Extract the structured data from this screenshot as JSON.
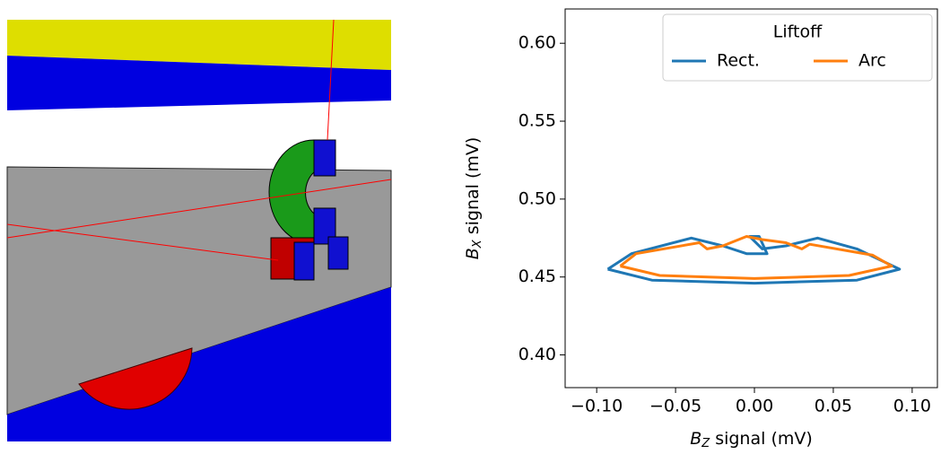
{
  "chart_data": {
    "type": "line",
    "xlabel": [
      "B",
      "Z",
      " signal (mV)"
    ],
    "ylabel": [
      "B",
      "X",
      " signal (mV)"
    ],
    "legend_title": "Liftoff",
    "legend": "upper right",
    "xlim": [
      -0.12,
      0.116
    ],
    "ylim": [
      0.379,
      0.622
    ],
    "xticks": [
      {
        "value": -0.1,
        "label": "−0.10"
      },
      {
        "value": -0.05,
        "label": "−0.05"
      },
      {
        "value": 0,
        "label": "0.00"
      },
      0.05,
      {
        "value": 0.1,
        "label": "0.10"
      }
    ],
    "yticks": [
      {
        "value": 0.4,
        "label": "0.40"
      },
      0.45,
      {
        "value": 0.5,
        "label": "0.50"
      },
      0.55,
      {
        "value": 0.6,
        "label": "0.60"
      }
    ],
    "series": [
      {
        "name": "Rect.",
        "color": "#1f77b4",
        "x": [
          -0.093,
          -0.078,
          -0.04,
          -0.02,
          -0.005,
          0.008,
          0.003,
          -0.003,
          0.005,
          0.02,
          0.04,
          0.065,
          0.092,
          0.065,
          0.0,
          -0.065,
          -0.093
        ],
        "values": [
          0.455,
          0.465,
          0.475,
          0.47,
          0.465,
          0.465,
          0.476,
          0.476,
          0.468,
          0.47,
          0.475,
          0.468,
          0.455,
          0.448,
          0.446,
          0.448,
          0.455
        ]
      },
      {
        "name": "Arc",
        "color": "#ff7f0e",
        "x": [
          -0.085,
          -0.075,
          -0.035,
          -0.03,
          -0.02,
          -0.005,
          0.005,
          0.02,
          0.03,
          0.035,
          0.075,
          0.087,
          0.06,
          0.0,
          -0.06,
          -0.085
        ],
        "values": [
          0.457,
          0.465,
          0.472,
          0.468,
          0.47,
          0.476,
          0.474,
          0.472,
          0.468,
          0.471,
          0.464,
          0.457,
          0.451,
          0.449,
          0.451,
          0.457
        ]
      }
    ]
  }
}
